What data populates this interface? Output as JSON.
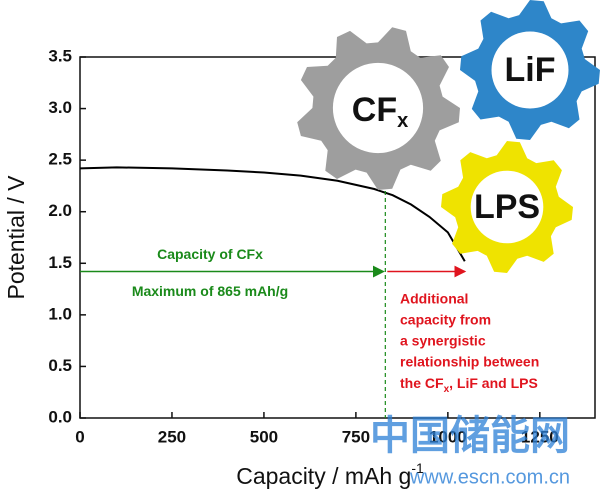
{
  "chart_data": {
    "type": "line",
    "xlabel": [
      "Capacity / mAh g",
      "-1"
    ],
    "ylabel": "Potential / V",
    "x": [
      0,
      100,
      250,
      400,
      500,
      600,
      700,
      800,
      850,
      900,
      950,
      1000,
      1046
    ],
    "values": [
      2.42,
      2.43,
      2.42,
      2.4,
      2.38,
      2.35,
      2.3,
      2.22,
      2.16,
      2.07,
      1.95,
      1.8,
      1.52
    ],
    "color": "#000000",
    "xlim": [
      0,
      1400
    ],
    "ylim": [
      0,
      3.5
    ],
    "xticks": [
      0,
      250,
      500,
      750,
      1000,
      1250
    ],
    "yticks": [
      {
        "value": 0,
        "label": "0.0"
      },
      0.5,
      {
        "value": 1,
        "label": "1.0"
      },
      1.5,
      {
        "value": 2,
        "label": "2.0"
      },
      2.5,
      {
        "value": 3,
        "label": "3.0"
      },
      3.5
    ],
    "cfx_limit": 830,
    "arrow_y": 1.42,
    "green_note": [
      "Capacity of CFx",
      "Maximum of 865 mAh/g"
    ],
    "red_note": {
      "lines": [
        "Additional",
        "capacity from",
        "a synergistic",
        "relationship between"
      ],
      "last": [
        "the CF",
        "x",
        ", LiF and LPS"
      ]
    },
    "gears": {
      "cfx": [
        "CF",
        "x"
      ],
      "lif": "LiF",
      "lps": "LPS"
    },
    "watermark": [
      "中国储能网",
      "www.escn.com.cn"
    ]
  }
}
